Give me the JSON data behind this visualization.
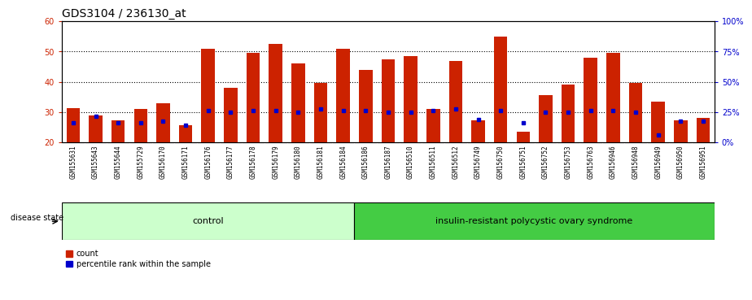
{
  "title": "GDS3104 / 236130_at",
  "samples": [
    "GSM155631",
    "GSM155643",
    "GSM155644",
    "GSM155729",
    "GSM156170",
    "GSM156171",
    "GSM156176",
    "GSM156177",
    "GSM156178",
    "GSM156179",
    "GSM156180",
    "GSM156181",
    "GSM156184",
    "GSM156186",
    "GSM156187",
    "GSM156510",
    "GSM156511",
    "GSM156512",
    "GSM156749",
    "GSM156750",
    "GSM156751",
    "GSM156752",
    "GSM156753",
    "GSM156763",
    "GSM156946",
    "GSM156948",
    "GSM156949",
    "GSM156950",
    "GSM156951"
  ],
  "counts": [
    31.2,
    28.8,
    27.2,
    31.0,
    32.8,
    25.5,
    51.0,
    38.0,
    49.5,
    52.5,
    46.0,
    39.5,
    51.0,
    44.0,
    47.5,
    48.5,
    31.0,
    47.0,
    27.2,
    55.0,
    23.5,
    35.5,
    39.0,
    48.0,
    49.5,
    39.5,
    33.5,
    27.2,
    28.0
  ],
  "percentile_rank": [
    26.5,
    28.5,
    26.5,
    26.5,
    27.0,
    25.5,
    30.5,
    30.0,
    30.5,
    30.5,
    30.0,
    31.0,
    30.5,
    30.5,
    30.0,
    30.0,
    30.5,
    31.0,
    27.5,
    30.5,
    26.5,
    30.0,
    30.0,
    30.5,
    30.5,
    30.0,
    22.5,
    27.0,
    27.0
  ],
  "group_control_count": 13,
  "group_control_label": "control",
  "group_disease_label": "insulin-resistant polycystic ovary syndrome",
  "ylim_left": [
    20,
    60
  ],
  "ylim_right": [
    0,
    100
  ],
  "yticks_left": [
    20,
    30,
    40,
    50,
    60
  ],
  "yticks_right": [
    0,
    25,
    50,
    75,
    100
  ],
  "bar_color": "#CC2200",
  "percentile_color": "#0000CC",
  "bar_bottom": 20,
  "bar_width": 0.6,
  "background_color": "#FFFFFF",
  "plot_bg_color": "#FFFFFF",
  "label_area_color_control": "#CCFFCC",
  "label_area_color_disease": "#44CC44",
  "xtick_bg_color": "#CCCCCC",
  "axis_label_left_color": "#CC2200",
  "axis_label_right_color": "#0000CC",
  "title_color": "#000000",
  "title_fontsize": 10,
  "tick_fontsize": 7,
  "xtick_fontsize": 5.5,
  "group_label_fontsize": 8,
  "legend_fontsize": 7,
  "disease_state_fontsize": 7
}
